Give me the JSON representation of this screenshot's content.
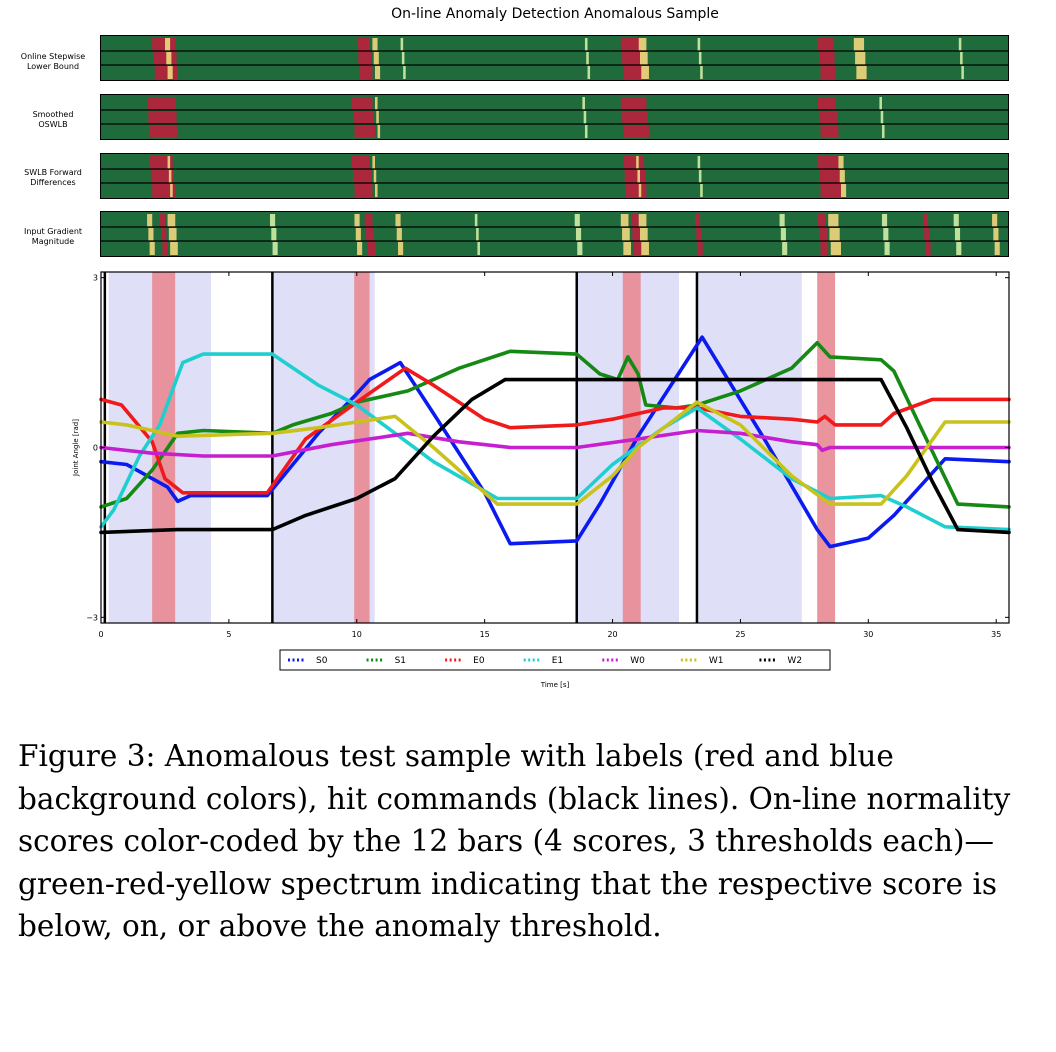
{
  "title": "On-line Anomaly Detection Anomalous Sample",
  "bar_labels": [
    [
      "Online Stepwise",
      "Lower Bound"
    ],
    [
      "Smoothed",
      "OSWLB"
    ],
    [
      "SWLB Forward",
      "Differences"
    ],
    [
      "Input Gradient",
      "Magnitude"
    ]
  ],
  "colors": {
    "bar_base": "#1f6b3c",
    "bar_red": "#b3243c",
    "bar_yellow": "#e8d27a",
    "bar_light": "#c9e8a0",
    "label_red": "#e88a92",
    "label_blue": "#dfe0f8",
    "hit_line": "#000000"
  },
  "bar_events": [
    [
      {
        "t": [
          2.0,
          2.9
        ],
        "c": "red"
      },
      {
        "t": [
          2.5,
          2.7
        ],
        "c": "yellow"
      },
      {
        "t": [
          10.0,
          10.5
        ],
        "c": "red"
      },
      {
        "t": [
          10.6,
          10.8
        ],
        "c": "yellow"
      },
      {
        "t": [
          11.7,
          11.8
        ],
        "c": "light"
      },
      {
        "t": [
          20.3,
          21.2
        ],
        "c": "red"
      },
      {
        "t": [
          21.0,
          21.3
        ],
        "c": "yellow"
      },
      {
        "t": [
          28.0,
          28.6
        ],
        "c": "red"
      },
      {
        "t": [
          29.4,
          29.8
        ],
        "c": "yellow"
      },
      {
        "t": [
          18.9,
          19.0
        ],
        "c": "light"
      },
      {
        "t": [
          23.3,
          23.4
        ],
        "c": "light"
      },
      {
        "t": [
          33.5,
          33.6
        ],
        "c": "light"
      }
    ],
    [
      {
        "t": [
          1.8,
          2.9
        ],
        "c": "red"
      },
      {
        "t": [
          9.8,
          10.6
        ],
        "c": "red"
      },
      {
        "t": [
          10.7,
          10.8
        ],
        "c": "yellow"
      },
      {
        "t": [
          20.3,
          21.3
        ],
        "c": "red"
      },
      {
        "t": [
          28.0,
          28.7
        ],
        "c": "red"
      },
      {
        "t": [
          30.4,
          30.5
        ],
        "c": "light"
      },
      {
        "t": [
          18.8,
          18.9
        ],
        "c": "light"
      }
    ],
    [
      {
        "t": [
          1.9,
          2.8
        ],
        "c": "red"
      },
      {
        "t": [
          2.6,
          2.7
        ],
        "c": "yellow"
      },
      {
        "t": [
          9.8,
          10.5
        ],
        "c": "red"
      },
      {
        "t": [
          10.6,
          10.7
        ],
        "c": "yellow"
      },
      {
        "t": [
          20.4,
          21.2
        ],
        "c": "red"
      },
      {
        "t": [
          20.9,
          21.0
        ],
        "c": "yellow"
      },
      {
        "t": [
          28.0,
          28.8
        ],
        "c": "red"
      },
      {
        "t": [
          28.8,
          29.0
        ],
        "c": "yellow"
      },
      {
        "t": [
          23.3,
          23.4
        ],
        "c": "light"
      }
    ],
    [
      {
        "t": [
          1.8,
          2.0
        ],
        "c": "yellow"
      },
      {
        "t": [
          2.3,
          2.5
        ],
        "c": "red"
      },
      {
        "t": [
          2.6,
          2.9
        ],
        "c": "yellow"
      },
      {
        "t": [
          6.6,
          6.8
        ],
        "c": "light"
      },
      {
        "t": [
          9.9,
          10.1
        ],
        "c": "yellow"
      },
      {
        "t": [
          10.3,
          10.6
        ],
        "c": "red"
      },
      {
        "t": [
          11.5,
          11.7
        ],
        "c": "yellow"
      },
      {
        "t": [
          14.6,
          14.7
        ],
        "c": "light"
      },
      {
        "t": [
          18.5,
          18.7
        ],
        "c": "light"
      },
      {
        "t": [
          20.3,
          20.6
        ],
        "c": "yellow"
      },
      {
        "t": [
          20.7,
          21.0
        ],
        "c": "red"
      },
      {
        "t": [
          21.0,
          21.3
        ],
        "c": "yellow"
      },
      {
        "t": [
          23.2,
          23.4
        ],
        "c": "red"
      },
      {
        "t": [
          26.5,
          26.7
        ],
        "c": "light"
      },
      {
        "t": [
          28.0,
          28.3
        ],
        "c": "red"
      },
      {
        "t": [
          28.4,
          28.8
        ],
        "c": "yellow"
      },
      {
        "t": [
          30.5,
          30.7
        ],
        "c": "light"
      },
      {
        "t": [
          32.1,
          32.3
        ],
        "c": "red"
      },
      {
        "t": [
          33.3,
          33.5
        ],
        "c": "light"
      },
      {
        "t": [
          34.8,
          35.0
        ],
        "c": "yellow"
      }
    ]
  ],
  "chart_data": {
    "type": "line",
    "xlabel": "Time [s]",
    "ylabel": "Joint Angle [rad]",
    "xlim": [
      0,
      35.5
    ],
    "ylim": [
      -3.1,
      3.1
    ],
    "xticks": [
      "0",
      "5",
      "10",
      "15",
      "20",
      "25",
      "30",
      "35"
    ],
    "xtick_values": [
      0,
      5,
      10,
      15,
      20,
      25,
      30,
      35
    ],
    "yticks": [
      "−3",
      "0",
      "3"
    ],
    "ytick_values": [
      -3,
      0,
      3
    ],
    "blue_regions": [
      [
        0.3,
        4.3
      ],
      [
        6.7,
        10.7
      ],
      [
        18.6,
        22.6
      ],
      [
        23.3,
        27.4
      ]
    ],
    "red_regions": [
      [
        2.0,
        2.9
      ],
      [
        9.9,
        10.5
      ],
      [
        20.4,
        21.1
      ],
      [
        28.0,
        28.7
      ]
    ],
    "hit_lines": [
      0.15,
      6.7,
      18.6,
      23.3
    ],
    "legend_location": "lower center",
    "series": [
      {
        "name": "S0",
        "color": "#0b1bf0",
        "points": [
          [
            0,
            -0.25
          ],
          [
            1,
            -0.3
          ],
          [
            2,
            -0.55
          ],
          [
            2.6,
            -0.7
          ],
          [
            3.0,
            -0.95
          ],
          [
            3.5,
            -0.85
          ],
          [
            6.5,
            -0.85
          ],
          [
            7.5,
            -0.3
          ],
          [
            8.5,
            0.25
          ],
          [
            10,
            0.95
          ],
          [
            10.5,
            1.2
          ],
          [
            11.7,
            1.5
          ],
          [
            13,
            0.6
          ],
          [
            15,
            -0.8
          ],
          [
            16,
            -1.7
          ],
          [
            18.6,
            -1.65
          ],
          [
            19.5,
            -1.0
          ],
          [
            21,
            0.2
          ],
          [
            23.5,
            1.95
          ],
          [
            26,
            0.1
          ],
          [
            28,
            -1.45
          ],
          [
            28.5,
            -1.75
          ],
          [
            30,
            -1.6
          ],
          [
            31,
            -1.2
          ],
          [
            33,
            -0.2
          ],
          [
            35.5,
            -0.25
          ]
        ]
      },
      {
        "name": "S1",
        "color": "#148a14",
        "points": [
          [
            0,
            -1.05
          ],
          [
            1,
            -0.9
          ],
          [
            2,
            -0.4
          ],
          [
            3,
            0.25
          ],
          [
            4,
            0.3
          ],
          [
            6.7,
            0.25
          ],
          [
            7.5,
            0.4
          ],
          [
            9,
            0.6
          ],
          [
            10,
            0.8
          ],
          [
            12,
            1.0
          ],
          [
            14,
            1.4
          ],
          [
            16,
            1.7
          ],
          [
            18.6,
            1.65
          ],
          [
            19.5,
            1.3
          ],
          [
            20.2,
            1.2
          ],
          [
            20.6,
            1.6
          ],
          [
            21,
            1.3
          ],
          [
            21.3,
            0.75
          ],
          [
            22.5,
            0.7
          ],
          [
            23.3,
            0.75
          ],
          [
            25,
            1.0
          ],
          [
            27,
            1.4
          ],
          [
            28,
            1.85
          ],
          [
            28.5,
            1.6
          ],
          [
            30.5,
            1.55
          ],
          [
            31,
            1.35
          ],
          [
            32,
            0.4
          ],
          [
            33.5,
            -1.0
          ],
          [
            35.5,
            -1.05
          ]
        ]
      },
      {
        "name": "E0",
        "color": "#f01a1a",
        "points": [
          [
            0,
            0.85
          ],
          [
            0.8,
            0.75
          ],
          [
            2.0,
            0.1
          ],
          [
            2.5,
            -0.55
          ],
          [
            3.2,
            -0.8
          ],
          [
            6.5,
            -0.8
          ],
          [
            8,
            0.15
          ],
          [
            10,
            0.8
          ],
          [
            11.9,
            1.4
          ],
          [
            13,
            1.1
          ],
          [
            15,
            0.5
          ],
          [
            16,
            0.35
          ],
          [
            18.6,
            0.4
          ],
          [
            20,
            0.5
          ],
          [
            22,
            0.7
          ],
          [
            23.3,
            0.7
          ],
          [
            25,
            0.55
          ],
          [
            27,
            0.5
          ],
          [
            28,
            0.45
          ],
          [
            28.3,
            0.55
          ],
          [
            28.7,
            0.4
          ],
          [
            30.5,
            0.4
          ],
          [
            31,
            0.6
          ],
          [
            32.5,
            0.85
          ],
          [
            35.5,
            0.85
          ]
        ]
      },
      {
        "name": "E1",
        "color": "#1fcfcf",
        "points": [
          [
            0,
            -1.4
          ],
          [
            0.5,
            -1.1
          ],
          [
            1.5,
            -0.15
          ],
          [
            2.3,
            0.4
          ],
          [
            2.7,
            0.9
          ],
          [
            3.2,
            1.5
          ],
          [
            4,
            1.65
          ],
          [
            6.7,
            1.65
          ],
          [
            8.5,
            1.1
          ],
          [
            10,
            0.75
          ],
          [
            11.5,
            0.25
          ],
          [
            13,
            -0.25
          ],
          [
            15.5,
            -0.9
          ],
          [
            18.6,
            -0.9
          ],
          [
            20,
            -0.3
          ],
          [
            22,
            0.35
          ],
          [
            23.3,
            0.7
          ],
          [
            25,
            0.15
          ],
          [
            27,
            -0.55
          ],
          [
            28.5,
            -0.9
          ],
          [
            30.5,
            -0.85
          ],
          [
            31.5,
            -1.05
          ],
          [
            33,
            -1.4
          ],
          [
            35.5,
            -1.45
          ]
        ]
      },
      {
        "name": "W0",
        "color": "#c61fcf",
        "points": [
          [
            0,
            0.0
          ],
          [
            2,
            -0.1
          ],
          [
            4,
            -0.15
          ],
          [
            6.7,
            -0.15
          ],
          [
            9,
            0.05
          ],
          [
            10.5,
            0.15
          ],
          [
            12,
            0.25
          ],
          [
            14,
            0.1
          ],
          [
            16,
            0.0
          ],
          [
            18.6,
            0.0
          ],
          [
            21,
            0.15
          ],
          [
            23.3,
            0.3
          ],
          [
            25,
            0.25
          ],
          [
            27,
            0.1
          ],
          [
            28,
            0.05
          ],
          [
            28.2,
            -0.05
          ],
          [
            28.5,
            0.0
          ],
          [
            33,
            0.0
          ],
          [
            35.5,
            0.0
          ]
        ]
      },
      {
        "name": "W1",
        "color": "#c9c21c",
        "points": [
          [
            0,
            0.45
          ],
          [
            1,
            0.4
          ],
          [
            2,
            0.3
          ],
          [
            3,
            0.2
          ],
          [
            6.7,
            0.25
          ],
          [
            8.5,
            0.35
          ],
          [
            10,
            0.45
          ],
          [
            11.5,
            0.55
          ],
          [
            13,
            0.0
          ],
          [
            14.5,
            -0.6
          ],
          [
            15.5,
            -1.0
          ],
          [
            18.6,
            -1.0
          ],
          [
            20,
            -0.5
          ],
          [
            21,
            0.0
          ],
          [
            23.3,
            0.8
          ],
          [
            25,
            0.4
          ],
          [
            27,
            -0.5
          ],
          [
            28.5,
            -1.0
          ],
          [
            30.5,
            -1.0
          ],
          [
            31.5,
            -0.5
          ],
          [
            33,
            0.45
          ],
          [
            35.5,
            0.45
          ]
        ]
      },
      {
        "name": "W2",
        "color": "#000000",
        "points": [
          [
            0,
            -1.5
          ],
          [
            3,
            -1.45
          ],
          [
            6.7,
            -1.45
          ],
          [
            8,
            -1.2
          ],
          [
            10,
            -0.9
          ],
          [
            11.5,
            -0.55
          ],
          [
            13,
            0.2
          ],
          [
            14.5,
            0.85
          ],
          [
            15.8,
            1.2
          ],
          [
            20,
            1.2
          ],
          [
            23.3,
            1.2
          ],
          [
            27,
            1.2
          ],
          [
            30.5,
            1.2
          ],
          [
            31.5,
            0.35
          ],
          [
            32.5,
            -0.6
          ],
          [
            33.5,
            -1.45
          ],
          [
            35.5,
            -1.5
          ]
        ]
      }
    ]
  },
  "caption": "Figure 3: Anomalous test sample with labels (red and blue background colors), hit commands (black lines). On-line normality scores color-coded by the 12 bars (4 scores, 3 thresholds each)—green-red-yellow spectrum indicating that the respective score is below, on, or above the anomaly threshold."
}
